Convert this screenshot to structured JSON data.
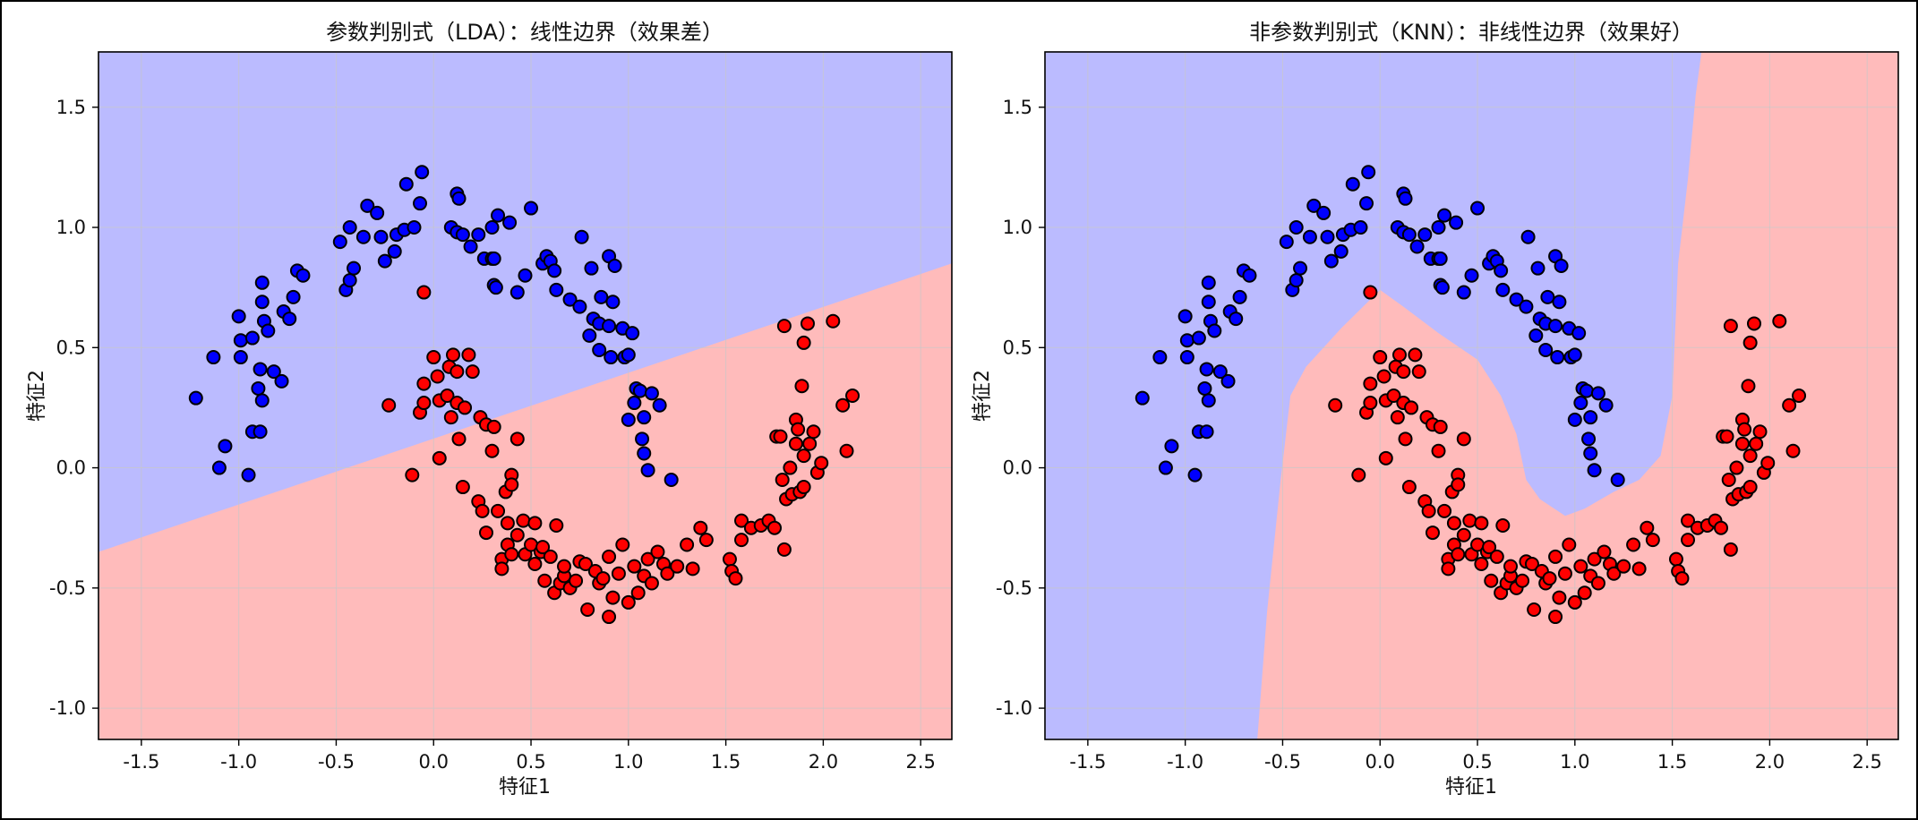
{
  "figure": {
    "background": "#ffffff",
    "frame_color": "#000000"
  },
  "chart_data": [
    {
      "type": "scatter",
      "title": "参数判别式（LDA）：线性边界（效果差）",
      "xlabel": "特征1",
      "ylabel": "特征2",
      "xlim": [
        -1.72,
        2.66
      ],
      "ylim": [
        -1.13,
        1.73
      ],
      "xticks": [
        -1.5,
        -1.0,
        -0.5,
        0.0,
        0.5,
        1.0,
        1.5,
        2.0,
        2.5
      ],
      "xtick_labels": [
        "-1.5",
        "-1.0",
        "-0.5",
        "0.0",
        "0.5",
        "1.0",
        "1.5",
        "2.0",
        "2.5"
      ],
      "yticks": [
        -1.0,
        -0.5,
        0.0,
        0.5,
        1.0,
        1.5
      ],
      "ytick_labels": [
        "-1.0",
        "-0.5",
        "0.0",
        "0.5",
        "1.0",
        "1.5"
      ],
      "grid": true,
      "boundary": {
        "kind": "linear",
        "points": [
          [
            -1.72,
            -0.35
          ],
          [
            2.66,
            0.85
          ]
        ],
        "above_class": 0,
        "below_class": 1
      },
      "region_colors": {
        "class0": "#bbbbff",
        "class1": "#ffbbbb"
      }
    },
    {
      "type": "scatter",
      "title": "非参数判别式（KNN）：非线性边界（效果好）",
      "xlabel": "特征1",
      "ylabel": "特征2",
      "xlim": [
        -1.72,
        2.66
      ],
      "ylim": [
        -1.13,
        1.73
      ],
      "xticks": [
        -1.5,
        -1.0,
        -0.5,
        0.0,
        0.5,
        1.0,
        1.5,
        2.0,
        2.5
      ],
      "xtick_labels": [
        "-1.5",
        "-1.0",
        "-0.5",
        "0.0",
        "0.5",
        "1.0",
        "1.5",
        "2.0",
        "2.5"
      ],
      "yticks": [
        -1.0,
        -0.5,
        0.0,
        0.5,
        1.0,
        1.5
      ],
      "ytick_labels": [
        "-1.0",
        "-0.5",
        "0.0",
        "0.5",
        "1.0",
        "1.5"
      ],
      "grid": true,
      "boundary": {
        "kind": "nonlinear",
        "class1_region": [
          [
            -0.63,
            -1.13
          ],
          [
            -0.58,
            -0.6
          ],
          [
            -0.51,
            -0.05
          ],
          [
            -0.46,
            0.3
          ],
          [
            -0.38,
            0.42
          ],
          [
            -0.2,
            0.58
          ],
          [
            -0.05,
            0.7
          ],
          [
            0.0,
            0.74
          ],
          [
            0.12,
            0.67
          ],
          [
            0.3,
            0.56
          ],
          [
            0.5,
            0.45
          ],
          [
            0.62,
            0.3
          ],
          [
            0.7,
            0.14
          ],
          [
            0.75,
            -0.05
          ],
          [
            0.82,
            -0.13
          ],
          [
            0.95,
            -0.2
          ],
          [
            1.05,
            -0.17
          ],
          [
            1.2,
            -0.1
          ],
          [
            1.33,
            -0.05
          ],
          [
            1.44,
            0.05
          ],
          [
            1.5,
            0.3
          ],
          [
            1.53,
            0.85
          ],
          [
            1.58,
            1.2
          ],
          [
            1.62,
            1.55
          ],
          [
            1.65,
            1.73
          ],
          [
            2.66,
            1.73
          ],
          [
            2.66,
            -1.13
          ]
        ],
        "region_colors": {
          "class0": "#bbbbff",
          "class1": "#ffbbbb"
        }
      }
    }
  ],
  "points": {
    "class0_color": "#0000ff",
    "class1_color": "#ff0000",
    "class0": [
      [
        -1.22,
        0.29
      ],
      [
        -1.13,
        0.46
      ],
      [
        -1.1,
        0.0
      ],
      [
        -1.07,
        0.09
      ],
      [
        -1.0,
        0.63
      ],
      [
        -0.99,
        0.53
      ],
      [
        -0.99,
        0.46
      ],
      [
        -0.95,
        -0.03
      ],
      [
        -0.93,
        0.54
      ],
      [
        -0.93,
        0.15
      ],
      [
        -0.9,
        0.33
      ],
      [
        -0.89,
        0.15
      ],
      [
        -0.89,
        0.41
      ],
      [
        -0.88,
        0.77
      ],
      [
        -0.88,
        0.28
      ],
      [
        -0.88,
        0.69
      ],
      [
        -0.87,
        0.61
      ],
      [
        -0.85,
        0.57
      ],
      [
        -0.82,
        0.4
      ],
      [
        -0.78,
        0.36
      ],
      [
        -0.77,
        0.65
      ],
      [
        -0.74,
        0.62
      ],
      [
        -0.72,
        0.71
      ],
      [
        -0.7,
        0.82
      ],
      [
        -0.67,
        0.8
      ],
      [
        -0.48,
        0.94
      ],
      [
        -0.45,
        0.74
      ],
      [
        -0.43,
        0.78
      ],
      [
        -0.43,
        1.0
      ],
      [
        -0.41,
        0.83
      ],
      [
        -0.36,
        0.96
      ],
      [
        -0.34,
        1.09
      ],
      [
        -0.29,
        1.06
      ],
      [
        -0.27,
        0.96
      ],
      [
        -0.25,
        0.86
      ],
      [
        -0.2,
        0.9
      ],
      [
        -0.19,
        0.97
      ],
      [
        -0.15,
        0.99
      ],
      [
        -0.14,
        1.18
      ],
      [
        -0.1,
        1.0
      ],
      [
        -0.07,
        1.1
      ],
      [
        -0.06,
        1.23
      ],
      [
        0.09,
        1.0
      ],
      [
        0.12,
        1.14
      ],
      [
        0.13,
        1.12
      ],
      [
        0.12,
        0.98
      ],
      [
        0.15,
        0.97
      ],
      [
        0.19,
        0.92
      ],
      [
        0.23,
        0.97
      ],
      [
        0.26,
        0.87
      ],
      [
        0.3,
        0.87
      ],
      [
        0.3,
        1.0
      ],
      [
        0.31,
        0.87
      ],
      [
        0.31,
        0.76
      ],
      [
        0.33,
        1.05
      ],
      [
        0.32,
        0.75
      ],
      [
        0.39,
        1.02
      ],
      [
        0.43,
        0.73
      ],
      [
        0.47,
        0.8
      ],
      [
        0.5,
        1.08
      ],
      [
        0.56,
        0.85
      ],
      [
        0.58,
        0.88
      ],
      [
        0.6,
        0.86
      ],
      [
        0.62,
        0.82
      ],
      [
        0.63,
        0.74
      ],
      [
        0.7,
        0.7
      ],
      [
        0.75,
        0.67
      ],
      [
        0.76,
        0.96
      ],
      [
        0.8,
        0.55
      ],
      [
        0.81,
        0.83
      ],
      [
        0.82,
        0.62
      ],
      [
        0.85,
        0.6
      ],
      [
        0.85,
        0.49
      ],
      [
        0.86,
        0.71
      ],
      [
        0.9,
        0.88
      ],
      [
        0.9,
        0.59
      ],
      [
        0.91,
        0.46
      ],
      [
        0.92,
        0.69
      ],
      [
        0.93,
        0.84
      ],
      [
        0.97,
        0.58
      ],
      [
        0.98,
        0.46
      ],
      [
        1.0,
        0.2
      ],
      [
        1.0,
        0.47
      ],
      [
        1.02,
        0.56
      ],
      [
        1.03,
        0.27
      ],
      [
        1.04,
        0.33
      ],
      [
        1.06,
        0.32
      ],
      [
        1.07,
        0.12
      ],
      [
        1.08,
        0.21
      ],
      [
        1.08,
        0.06
      ],
      [
        1.1,
        -0.01
      ],
      [
        1.12,
        0.31
      ],
      [
        1.16,
        0.26
      ],
      [
        1.22,
        -0.05
      ]
    ],
    "class1": [
      [
        -0.23,
        0.26
      ],
      [
        -0.11,
        -0.03
      ],
      [
        -0.07,
        0.23
      ],
      [
        -0.05,
        0.73
      ],
      [
        -0.05,
        0.27
      ],
      [
        -0.05,
        0.35
      ],
      [
        0.0,
        0.46
      ],
      [
        0.02,
        0.38
      ],
      [
        0.03,
        0.28
      ],
      [
        0.03,
        0.04
      ],
      [
        0.07,
        0.3
      ],
      [
        0.08,
        0.42
      ],
      [
        0.09,
        0.21
      ],
      [
        0.1,
        0.47
      ],
      [
        0.12,
        0.4
      ],
      [
        0.12,
        0.27
      ],
      [
        0.13,
        0.12
      ],
      [
        0.15,
        -0.08
      ],
      [
        0.16,
        0.25
      ],
      [
        0.18,
        0.47
      ],
      [
        0.2,
        0.4
      ],
      [
        0.23,
        -0.14
      ],
      [
        0.24,
        0.21
      ],
      [
        0.25,
        -0.18
      ],
      [
        0.27,
        0.18
      ],
      [
        0.27,
        -0.27
      ],
      [
        0.3,
        0.07
      ],
      [
        0.31,
        0.17
      ],
      [
        0.33,
        -0.18
      ],
      [
        0.35,
        -0.38
      ],
      [
        0.35,
        -0.42
      ],
      [
        0.37,
        -0.1
      ],
      [
        0.38,
        -0.32
      ],
      [
        0.38,
        -0.23
      ],
      [
        0.4,
        -0.03
      ],
      [
        0.4,
        -0.07
      ],
      [
        0.4,
        -0.36
      ],
      [
        0.43,
        -0.28
      ],
      [
        0.43,
        0.12
      ],
      [
        0.46,
        -0.22
      ],
      [
        0.47,
        -0.36
      ],
      [
        0.5,
        -0.32
      ],
      [
        0.52,
        -0.4
      ],
      [
        0.52,
        -0.23
      ],
      [
        0.55,
        -0.35
      ],
      [
        0.56,
        -0.33
      ],
      [
        0.57,
        -0.47
      ],
      [
        0.6,
        -0.37
      ],
      [
        0.62,
        -0.52
      ],
      [
        0.63,
        -0.24
      ],
      [
        0.65,
        -0.48
      ],
      [
        0.67,
        -0.45
      ],
      [
        0.67,
        -0.41
      ],
      [
        0.7,
        -0.5
      ],
      [
        0.73,
        -0.47
      ],
      [
        0.75,
        -0.39
      ],
      [
        0.78,
        -0.4
      ],
      [
        0.79,
        -0.59
      ],
      [
        0.83,
        -0.43
      ],
      [
        0.85,
        -0.48
      ],
      [
        0.87,
        -0.46
      ],
      [
        0.9,
        -0.37
      ],
      [
        0.9,
        -0.62
      ],
      [
        0.92,
        -0.54
      ],
      [
        0.95,
        -0.44
      ],
      [
        0.97,
        -0.32
      ],
      [
        1.0,
        -0.56
      ],
      [
        1.03,
        -0.41
      ],
      [
        1.05,
        -0.52
      ],
      [
        1.08,
        -0.45
      ],
      [
        1.1,
        -0.38
      ],
      [
        1.12,
        -0.48
      ],
      [
        1.15,
        -0.35
      ],
      [
        1.18,
        -0.4
      ],
      [
        1.2,
        -0.44
      ],
      [
        1.25,
        -0.41
      ],
      [
        1.3,
        -0.32
      ],
      [
        1.33,
        -0.42
      ],
      [
        1.37,
        -0.25
      ],
      [
        1.4,
        -0.3
      ],
      [
        1.52,
        -0.38
      ],
      [
        1.53,
        -0.43
      ],
      [
        1.55,
        -0.46
      ],
      [
        1.58,
        -0.22
      ],
      [
        1.58,
        -0.3
      ],
      [
        1.63,
        -0.25
      ],
      [
        1.68,
        -0.24
      ],
      [
        1.72,
        -0.22
      ],
      [
        1.75,
        -0.25
      ],
      [
        1.76,
        0.13
      ],
      [
        1.78,
        0.13
      ],
      [
        1.79,
        -0.05
      ],
      [
        1.8,
        -0.34
      ],
      [
        1.81,
        -0.13
      ],
      [
        1.83,
        0.0
      ],
      [
        1.84,
        -0.11
      ],
      [
        1.86,
        0.2
      ],
      [
        1.86,
        0.1
      ],
      [
        1.87,
        0.16
      ],
      [
        1.88,
        -0.1
      ],
      [
        1.89,
        0.34
      ],
      [
        1.9,
        0.05
      ],
      [
        1.9,
        0.52
      ],
      [
        1.92,
        0.6
      ],
      [
        1.95,
        0.15
      ],
      [
        1.97,
        -0.02
      ],
      [
        1.99,
        0.02
      ],
      [
        2.05,
        0.61
      ],
      [
        2.1,
        0.26
      ],
      [
        2.12,
        0.07
      ],
      [
        2.15,
        0.3
      ],
      [
        1.8,
        0.59
      ],
      [
        1.9,
        -0.08
      ],
      [
        1.93,
        0.1
      ]
    ]
  }
}
